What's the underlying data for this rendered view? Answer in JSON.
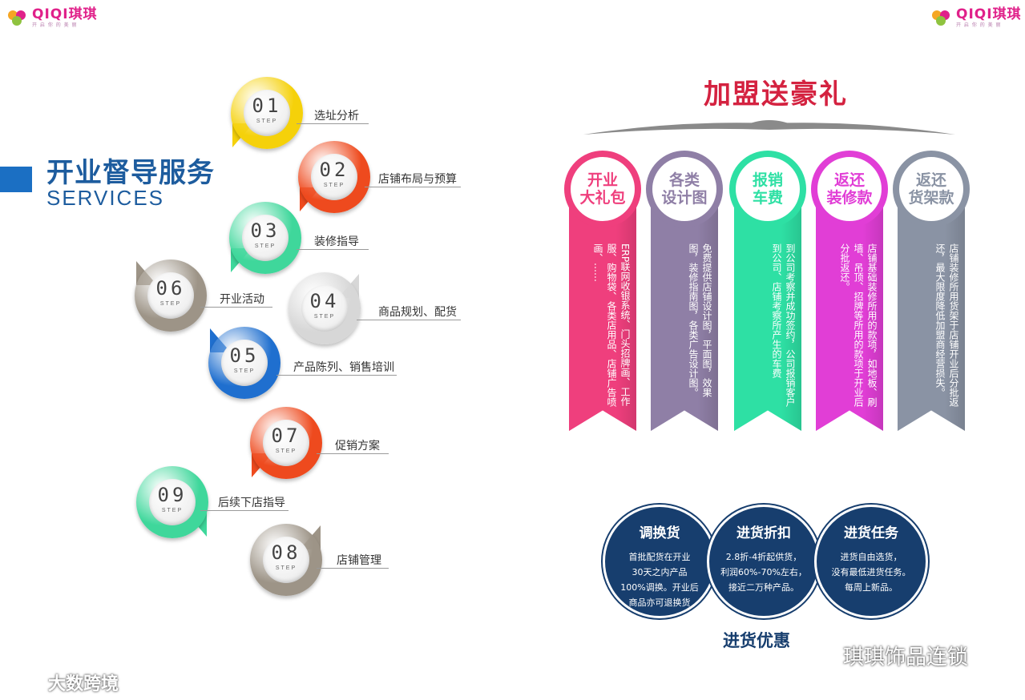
{
  "brand": {
    "name_latin": "QIQI",
    "name_cn": "琪琪",
    "tagline": "开 启 你 的 美 丽"
  },
  "left": {
    "title": "开业督导服务",
    "subtitle": "SERVICES",
    "step_word": "STEP",
    "steps": [
      {
        "num": "01",
        "text": "选址分析",
        "color": "#f5d10a"
      },
      {
        "num": "02",
        "text": "店铺布局与预算",
        "color": "#ee4a1e"
      },
      {
        "num": "03",
        "text": "装修指导",
        "color": "#3fd79b"
      },
      {
        "num": "06",
        "text": "开业活动",
        "color": "#9d9487"
      },
      {
        "num": "04",
        "text": "商品规划、配货",
        "color": "#d7d7d7"
      },
      {
        "num": "05",
        "text": "产品陈列、销售培训",
        "color": "#1f6fcf"
      },
      {
        "num": "07",
        "text": "促销方案",
        "color": "#ee4a1e"
      },
      {
        "num": "09",
        "text": "后续下店指导",
        "color": "#3fd79b"
      },
      {
        "num": "08",
        "text": "店铺管理",
        "color": "#9d9487"
      }
    ]
  },
  "right": {
    "title": "加盟送豪礼",
    "ribbons": [
      {
        "cap": "开业\n大礼包",
        "color": "#ef3f7d",
        "desc": "ERP联网收银系统、门头招牌画、工作服、购物袋、各类店用品、店铺广告喷画、……"
      },
      {
        "cap": "各类\n设计图",
        "color": "#8f7fa6",
        "desc": "免费提供店铺设计图，平面图，效果图，装修指南图，各类广告设计图。"
      },
      {
        "cap": "报销\n车费",
        "color": "#2ee0a4",
        "desc": "到公司考察并成功签约，公司报销客户到公司、店铺考察所产生的车费"
      },
      {
        "cap": "返还\n装修款",
        "color": "#e13ed6",
        "desc": "店铺基础装修所用的款项，如地板、刷墙、吊顶、招牌等所用的款项于开业后分批返还。"
      },
      {
        "cap": "返还\n货架款",
        "color": "#8a93a4",
        "desc": "店铺装修所用货架于店铺开业后分批返还，最大限度降低加盟商经营损失。"
      }
    ],
    "purchase": {
      "title": "进货优惠",
      "items": [
        {
          "head": "调换货",
          "text": "首批配货在开业\n30天之内产品\n100%调换。开业后\n商品亦可退换货"
        },
        {
          "head": "进货折扣",
          "text": "2.8折-4折起供货，\n利润60%-70%左右，\n接近二万种产品。"
        },
        {
          "head": "进货任务",
          "text": "进货自由选货，\n没有最低进货任务。\n每周上新品。"
        }
      ]
    }
  },
  "watermarks": {
    "left": "大数跨境",
    "right": "琪琪饰品连锁"
  }
}
